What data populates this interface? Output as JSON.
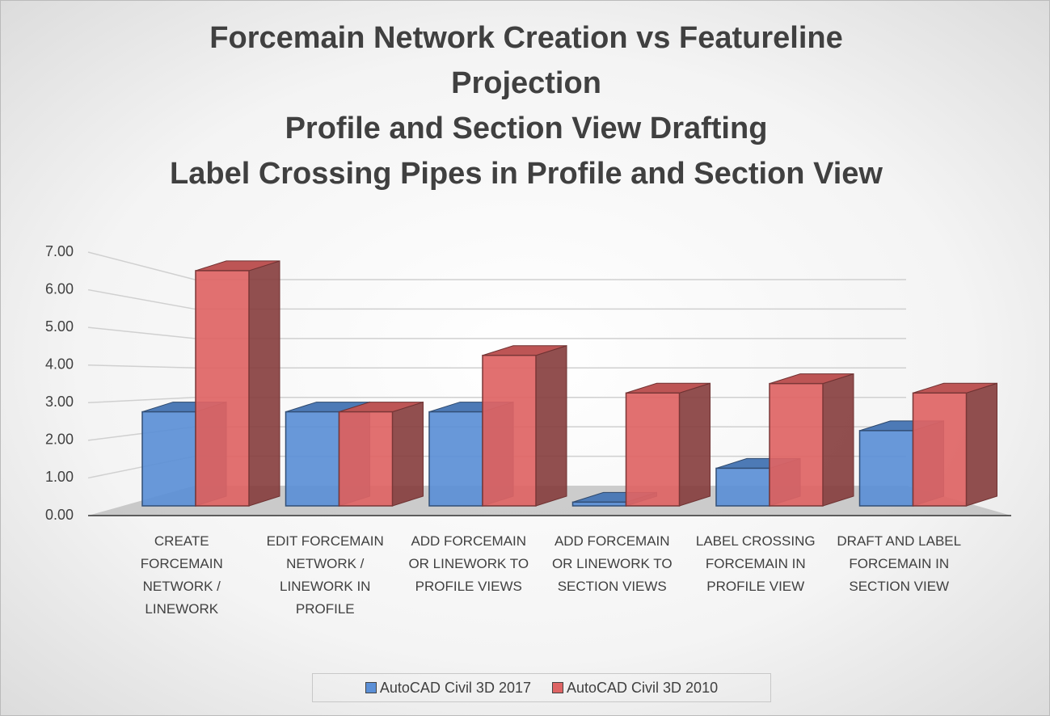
{
  "chart_data": {
    "type": "bar3d",
    "title": [
      "Forcemain Network Creation vs Featureline Projection",
      "Profile and Section View Drafting",
      "Label Crossing Pipes in Profile and Section View"
    ],
    "categories": [
      "CREATE FORCEMAIN NETWORK / LINEWORK",
      "EDIT FORCEMAIN NETWORK / LINEWORK IN PROFILE",
      "ADD FORCEMAIN OR LINEWORK TO PROFILE VIEWS",
      "ADD FORCEMAIN OR LINEWORK TO SECTION VIEWS",
      "LABEL CROSSING FORCEMAIN IN PROFILE VIEW",
      "DRAFT AND LABEL FORCEMAIN IN SECTION VIEW"
    ],
    "series": [
      {
        "name": "AutoCAD Civil 3D 2017",
        "color": "#5b8fd6",
        "values": [
          2.5,
          2.5,
          2.5,
          0.1,
          1.0,
          2.0
        ]
      },
      {
        "name": "AutoCAD Civil 3D 2010",
        "color": "#de6464",
        "values": [
          6.25,
          2.5,
          4.0,
          3.0,
          3.25,
          3.0
        ]
      }
    ],
    "ylim": [
      0,
      7
    ],
    "yticks": [
      {
        "value": 0,
        "label": "0.00"
      },
      {
        "value": 1,
        "label": "1.00"
      },
      {
        "value": 2,
        "label": "2.00"
      },
      {
        "value": 3,
        "label": "3.00"
      },
      {
        "value": 4,
        "label": "4.00"
      },
      {
        "value": 5,
        "label": "5.00"
      },
      {
        "value": 6,
        "label": "6.00"
      },
      {
        "value": 7,
        "label": "7.00"
      }
    ],
    "grid": true,
    "legend": "bottom"
  }
}
